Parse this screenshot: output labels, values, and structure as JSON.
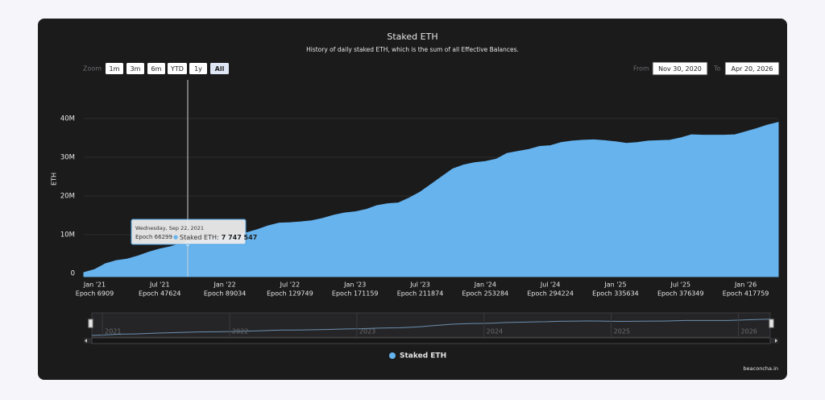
{
  "chart_data": {
    "type": "area",
    "title": "Staked ETH",
    "subtitle": "History of daily staked ETH, which is the sum of all Effective Balances.",
    "y_label": "ETH",
    "categories": [
      null,
      "Jan '21",
      null,
      null,
      null,
      null,
      null,
      "Jul '21",
      null,
      null,
      null,
      null,
      null,
      "Jan '22",
      null,
      null,
      null,
      null,
      null,
      "Jul '22",
      null,
      null,
      null,
      null,
      null,
      "Jan '23",
      null,
      null,
      null,
      null,
      null,
      "Jul '23",
      null,
      null,
      null,
      null,
      null,
      "Jan '24",
      null,
      null,
      null,
      null,
      null,
      "Jul '24",
      null,
      null,
      null,
      null,
      null,
      "Jan '25",
      null,
      null,
      null,
      null,
      null,
      "Jul '25",
      null,
      null,
      null,
      null,
      null,
      "Jan '26",
      null,
      null,
      null
    ],
    "epochs": [
      null,
      "Epoch 6909",
      null,
      null,
      null,
      null,
      null,
      "Epoch 47624",
      null,
      null,
      null,
      null,
      null,
      "Epoch 89034",
      null,
      null,
      null,
      null,
      null,
      "Epoch 129749",
      null,
      null,
      null,
      null,
      null,
      "Epoch 171159",
      null,
      null,
      null,
      null,
      null,
      "Epoch 211874",
      null,
      null,
      null,
      null,
      null,
      "Epoch 253284",
      null,
      null,
      null,
      null,
      null,
      "Epoch 294224",
      null,
      null,
      null,
      null,
      null,
      "Epoch 335634",
      null,
      null,
      null,
      null,
      null,
      "Epoch 376349",
      null,
      null,
      null,
      null,
      null,
      "Epoch 417759",
      null,
      null,
      null
    ],
    "series": [
      {
        "name": "Staked ETH",
        "color": "#66b3ee",
        "values": [
          200000,
          1000000,
          2500000,
          3300000,
          3700000,
          4500000,
          5500000,
          6300000,
          6900000,
          7700000,
          8300000,
          8700000,
          9000000,
          9400000,
          10000000,
          10500000,
          11300000,
          12300000,
          13000000,
          13100000,
          13300000,
          13600000,
          14200000,
          15000000,
          15600000,
          15900000,
          16500000,
          17500000,
          18000000,
          18200000,
          19500000,
          21000000,
          23000000,
          25000000,
          27000000,
          28000000,
          28600000,
          28900000,
          29500000,
          31000000,
          31500000,
          32000000,
          32800000,
          33000000,
          33800000,
          34200000,
          34400000,
          34500000,
          34300000,
          34000000,
          33600000,
          33800000,
          34200000,
          34300000,
          34400000,
          35000000,
          35800000,
          35700000,
          35700000,
          35700000,
          35800000,
          36600000,
          37400000,
          38300000,
          39000000
        ]
      }
    ],
    "ylim": [
      0,
      50000000
    ],
    "yticks": [
      0,
      {
        "value": 10000000,
        "label": "10M"
      },
      {
        "value": 20000000,
        "label": "20M"
      },
      {
        "value": 30000000,
        "label": "30M"
      },
      {
        "value": 40000000,
        "label": "40M"
      }
    ],
    "grid": true,
    "legend": "bottom",
    "tooltip": {
      "date": "Wednesday, Sep 22, 2021",
      "epoch": "Epoch 66299",
      "series_label": "Staked ETH:",
      "value": 7747547,
      "value_label": "7 747 547"
    },
    "navigator_years": [
      "2021",
      "2022",
      "2023",
      "2024",
      "2025",
      "2026"
    ]
  },
  "controls": {
    "zoom_label": "Zoom",
    "zoom_buttons": [
      "1m",
      "3m",
      "6m",
      "YTD",
      "1y",
      "All"
    ],
    "active": "All",
    "from_label": "From",
    "from": "Nov 30, 2020",
    "to_label": "To",
    "to": "Apr 20, 2026"
  },
  "credit": "beaconcha.in"
}
